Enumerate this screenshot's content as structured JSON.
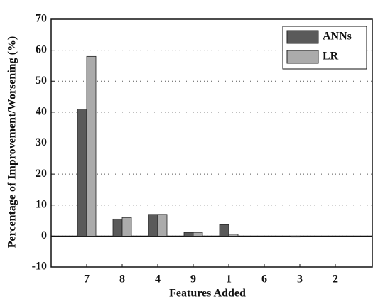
{
  "chart_data": {
    "type": "bar",
    "x_label": "Features Added",
    "y_label": "Percentage of Improvement/Worsening (%)",
    "categories": [
      "7",
      "8",
      "4",
      "9",
      "1",
      "6",
      "3",
      "2"
    ],
    "series": [
      {
        "name": "ANNs",
        "color": "#5a5a5a",
        "values": [
          41,
          5.5,
          7,
          1.2,
          3.7,
          0,
          -0.3,
          0
        ]
      },
      {
        "name": "LR",
        "color": "#ababab",
        "values": [
          58,
          6,
          7,
          1.2,
          0.6,
          0,
          0,
          0
        ]
      }
    ],
    "ylim": [
      -10,
      70
    ],
    "yticks": [
      -10,
      0,
      10,
      20,
      30,
      40,
      50,
      60,
      70
    ],
    "grid": true,
    "legend": "upper right"
  }
}
